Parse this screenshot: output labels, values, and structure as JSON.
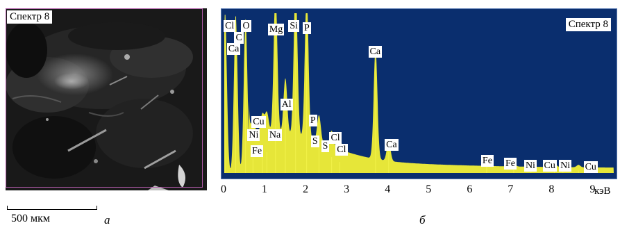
{
  "left_panel": {
    "spectrum_label": "Спектр 8",
    "scale_text": "500 мкм",
    "letter": "а"
  },
  "right_panel": {
    "letter": "б"
  },
  "colors": {
    "plot_background": "#0a2e6e",
    "peaks": "#e6e639",
    "frame": "#b05aa8"
  },
  "chart_data": {
    "type": "area",
    "title": "Спектр 8",
    "xlabel": "кэВ",
    "ylabel": "",
    "xlim": [
      0,
      9.5
    ],
    "ylim": [
      0,
      100
    ],
    "x_ticks": [
      "0",
      "1",
      "2",
      "3",
      "4",
      "5",
      "6",
      "7",
      "8",
      "9"
    ],
    "peaks": [
      {
        "x": 0.02,
        "y": 99
      },
      {
        "x": 0.28,
        "y": 98
      },
      {
        "x": 0.52,
        "y": 96
      },
      {
        "x": 0.7,
        "y": 9
      },
      {
        "x": 0.93,
        "y": 12
      },
      {
        "x": 1.04,
        "y": 13
      },
      {
        "x": 1.25,
        "y": 89
      },
      {
        "x": 1.49,
        "y": 35
      },
      {
        "x": 1.74,
        "y": 96
      },
      {
        "x": 2.01,
        "y": 90
      },
      {
        "x": 2.31,
        "y": 17
      },
      {
        "x": 2.62,
        "y": 10
      },
      {
        "x": 2.82,
        "y": 7
      },
      {
        "x": 3.69,
        "y": 69
      },
      {
        "x": 4.01,
        "y": 13
      },
      {
        "x": 6.4,
        "y": 5
      },
      {
        "x": 7.06,
        "y": 2
      },
      {
        "x": 7.48,
        "y": 3
      },
      {
        "x": 8.05,
        "y": 3
      },
      {
        "x": 8.26,
        "y": 2
      },
      {
        "x": 8.64,
        "y": 1.5
      }
    ],
    "labels": [
      {
        "text": "Cl",
        "x": 0.12,
        "y": 92
      },
      {
        "text": "O",
        "x": 0.55,
        "y": 92
      },
      {
        "text": "C",
        "x": 0.38,
        "y": 85
      },
      {
        "text": "Ca",
        "x": 0.2,
        "y": 78
      },
      {
        "text": "Mg",
        "x": 1.2,
        "y": 90
      },
      {
        "text": "Si",
        "x": 1.7,
        "y": 92
      },
      {
        "text": "P",
        "x": 2.05,
        "y": 91
      },
      {
        "text": "Ca",
        "x": 3.65,
        "y": 76
      },
      {
        "text": "Al",
        "x": 1.5,
        "y": 43
      },
      {
        "text": "Cu",
        "x": 0.8,
        "y": 32
      },
      {
        "text": "P",
        "x": 2.2,
        "y": 33
      },
      {
        "text": "Ni",
        "x": 0.7,
        "y": 24
      },
      {
        "text": "Na",
        "x": 1.2,
        "y": 24
      },
      {
        "text": "S",
        "x": 2.25,
        "y": 20
      },
      {
        "text": "Cl",
        "x": 2.7,
        "y": 22
      },
      {
        "text": "S",
        "x": 2.5,
        "y": 17
      },
      {
        "text": "Fe",
        "x": 0.78,
        "y": 14
      },
      {
        "text": "Cl",
        "x": 2.85,
        "y": 15
      },
      {
        "text": "Ca",
        "x": 4.05,
        "y": 18
      },
      {
        "text": "Fe",
        "x": 6.4,
        "y": 8
      },
      {
        "text": "Fe",
        "x": 6.96,
        "y": 6
      },
      {
        "text": "Ni",
        "x": 7.45,
        "y": 5
      },
      {
        "text": "Cu",
        "x": 7.9,
        "y": 5
      },
      {
        "text": "Ni",
        "x": 8.3,
        "y": 5
      },
      {
        "text": "Cu",
        "x": 8.9,
        "y": 4
      }
    ]
  }
}
